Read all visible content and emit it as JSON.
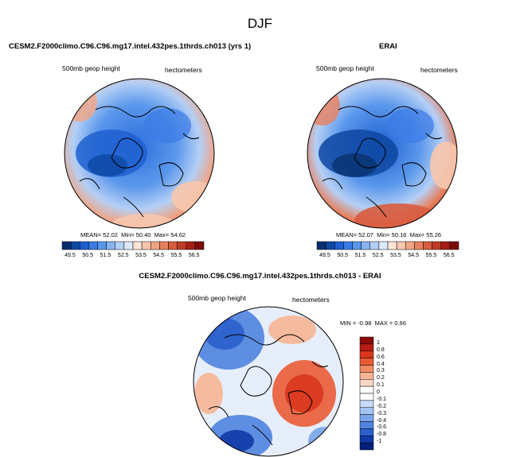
{
  "title": "DJF",
  "panels": {
    "model": {
      "title": "CESM2.F2000climo.C96.C96.mg17.intel.432pes.1thrds.ch013 (yrs 1)",
      "left_label": "500mb geop height",
      "right_label": "hectometers",
      "stats": {
        "mean_label": "MEAN=",
        "mean": "52.02",
        "min_label": "Min=",
        "min": "50.40",
        "max_label": "Max=",
        "max": "54.62"
      }
    },
    "obs": {
      "title": "ERAI",
      "left_label": "500mb geop height",
      "right_label": "hectometers",
      "stats": {
        "mean_label": "MEAN=",
        "mean": "52.07",
        "min_label": "Min=",
        "min": "50.16",
        "max_label": "Max=",
        "max": "55.26"
      }
    },
    "diff": {
      "title": "CESM2.F2000climo.C96.C96.mg17.intel.432pes.1thrds.ch013 - ERAI",
      "left_label": "500mb geop height",
      "right_label": "hectometers",
      "stats": {
        "min_label": "MIN =",
        "min": "-0.98",
        "max_label": "MAX =",
        "max": "0.66"
      }
    }
  },
  "colorbars": {
    "abs": {
      "ticks": [
        "49.5",
        "50.5",
        "51.5",
        "52.5",
        "53.5",
        "54.5",
        "55.5",
        "56.5"
      ],
      "colors": [
        "#08306b",
        "#0d47a1",
        "#1e5fd0",
        "#3b7be6",
        "#5a97ec",
        "#86b3f0",
        "#b4cff5",
        "#dde9fb",
        "#fbe3d6",
        "#f7c6ad",
        "#f1a483",
        "#e7815f",
        "#d85c3f",
        "#c03b26",
        "#a31f15",
        "#7d0c0c"
      ]
    },
    "diff": {
      "ticks": [
        "1",
        "0.8",
        "0.6",
        "0.4",
        "0.3",
        "0.2",
        "0.1",
        "0",
        "-0.1",
        "-0.2",
        "-0.3",
        "-0.4",
        "-0.6",
        "-0.8",
        "-1"
      ],
      "colors": [
        "#8b0a0a",
        "#b81c12",
        "#d9361c",
        "#ea5b35",
        "#f28a62",
        "#f7b594",
        "#fbd8c5",
        "#ffffff",
        "#ffffff",
        "#c8dcf8",
        "#a3c3f2",
        "#7aa5ea",
        "#4f83df",
        "#2a5fcc",
        "#0f3aa8",
        "#05207a"
      ]
    }
  }
}
